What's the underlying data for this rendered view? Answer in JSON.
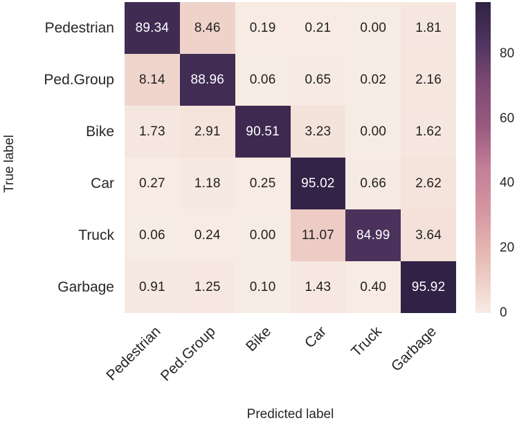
{
  "chart_data": {
    "type": "heatmap",
    "title": "",
    "xlabel": "Predicted label",
    "ylabel": "True label",
    "categories": [
      "Pedestrian",
      "Ped.Group",
      "Bike",
      "Car",
      "Truck",
      "Garbage"
    ],
    "matrix": [
      [
        89.34,
        8.46,
        0.19,
        0.21,
        0.0,
        1.81
      ],
      [
        8.14,
        88.96,
        0.06,
        0.65,
        0.02,
        2.16
      ],
      [
        1.73,
        2.91,
        90.51,
        3.23,
        0.0,
        1.62
      ],
      [
        0.27,
        1.18,
        0.25,
        95.02,
        0.66,
        2.62
      ],
      [
        0.06,
        0.24,
        0.0,
        11.07,
        84.99,
        3.64
      ],
      [
        0.91,
        1.25,
        0.1,
        1.43,
        0.4,
        95.92
      ]
    ],
    "value_decimals": 2,
    "vmin": 0,
    "vmax": 95.92,
    "colorbar_ticks": [
      0,
      20,
      40,
      60,
      80
    ],
    "colorbar_position": "right",
    "grid": false,
    "colormap_stops": [
      {
        "t": 0.0,
        "color": "#f7ece4"
      },
      {
        "t": 0.1,
        "color": "#eed0c8"
      },
      {
        "t": 0.21,
        "color": "#e4b4b1"
      },
      {
        "t": 0.33,
        "color": "#d496a1"
      },
      {
        "t": 0.47,
        "color": "#c27e96"
      },
      {
        "t": 0.6,
        "color": "#985a7e"
      },
      {
        "t": 0.74,
        "color": "#7d4974"
      },
      {
        "t": 0.865,
        "color": "#4f3560"
      },
      {
        "t": 1.0,
        "color": "#312245"
      }
    ],
    "annotation_color_dark": "#1f1f1f",
    "annotation_color_light": "#ffffff",
    "tick_label_color": "#262626",
    "background_color": "#ffffff"
  }
}
